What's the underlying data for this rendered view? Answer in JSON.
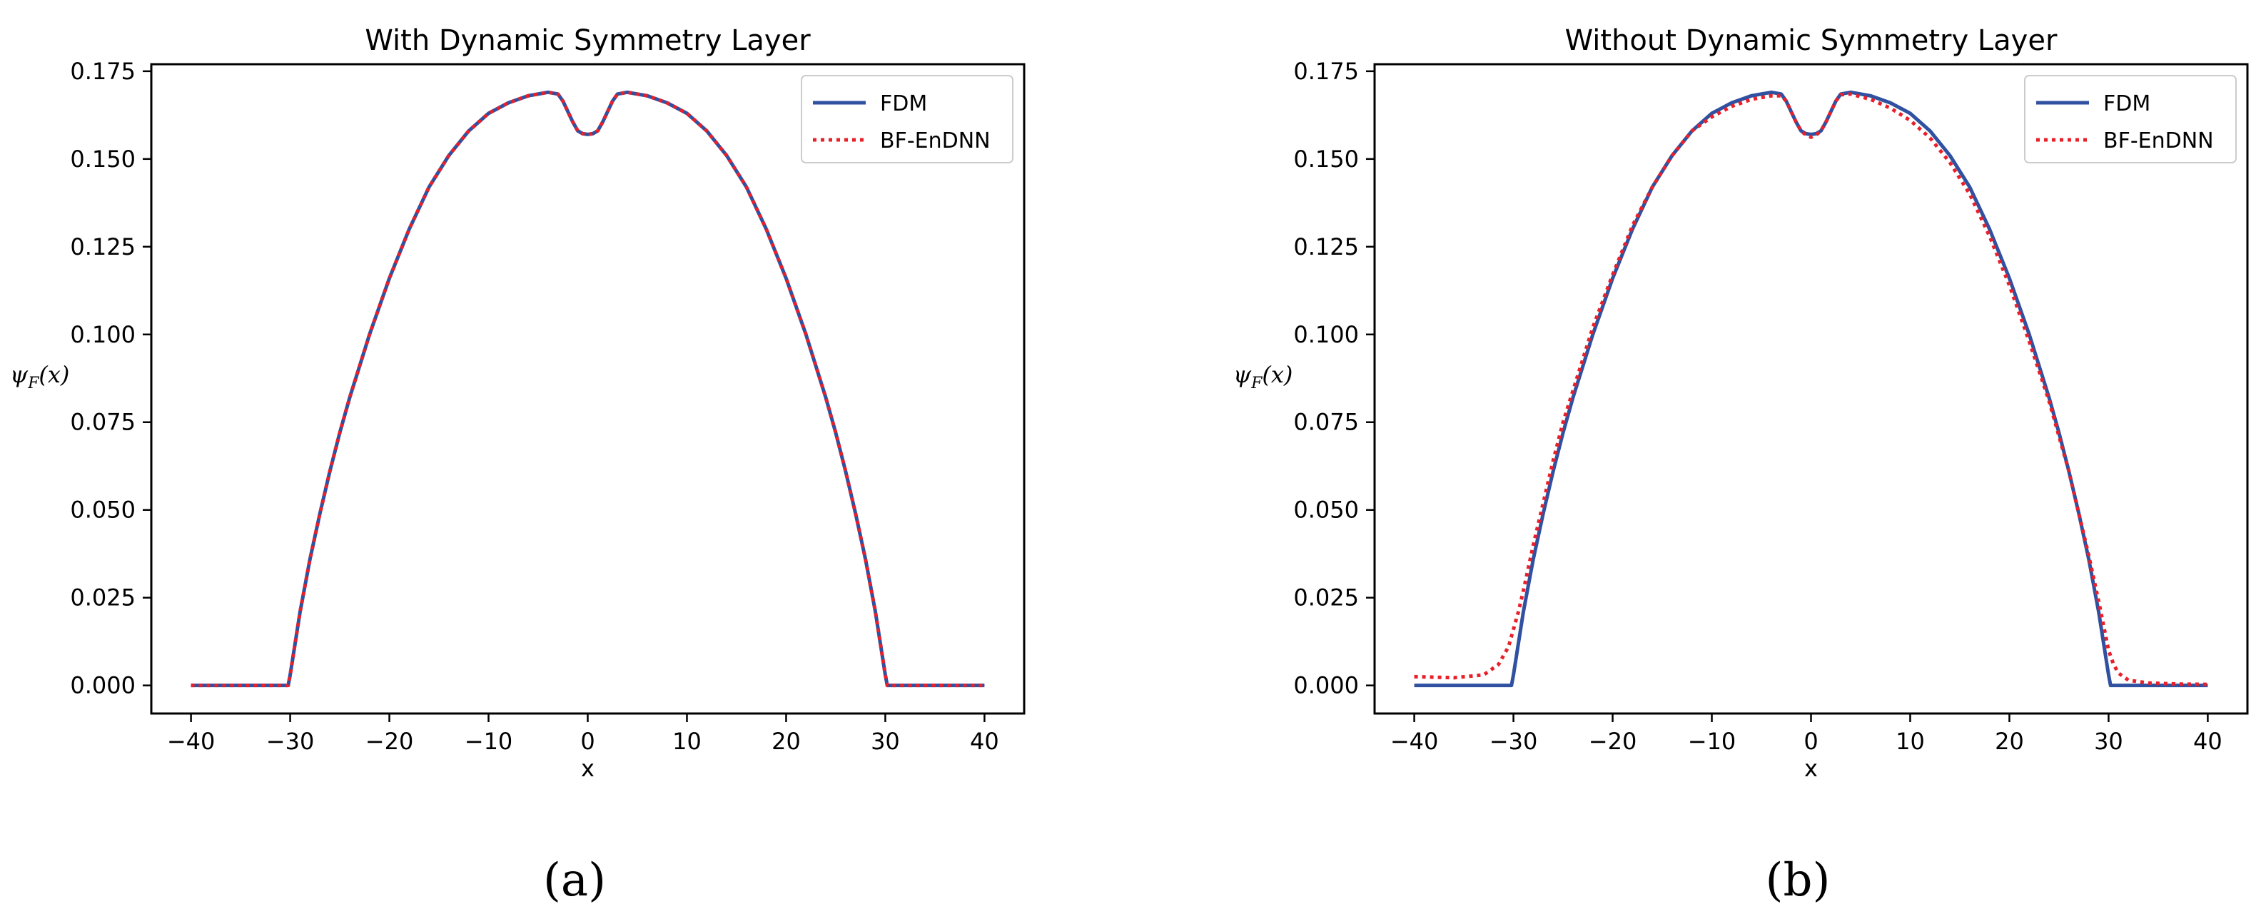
{
  "chart_data": [
    {
      "type": "line",
      "title": "With Dynamic Symmetry Layer",
      "caption": "(a)",
      "xlabel": "x",
      "ylabel": "ψ_F(x)",
      "xlim": [
        -44,
        44
      ],
      "ylim": [
        -0.008,
        0.177
      ],
      "xticks": [
        -40,
        -30,
        -20,
        -10,
        0,
        10,
        20,
        30,
        40
      ],
      "xtick_labels": [
        "−40",
        "−30",
        "−20",
        "−10",
        "0",
        "10",
        "20",
        "30",
        "40"
      ],
      "yticks": [
        0.0,
        0.025,
        0.05,
        0.075,
        0.1,
        0.125,
        0.15,
        0.175
      ],
      "ytick_labels": [
        "0.000",
        "0.025",
        "0.050",
        "0.075",
        "0.100",
        "0.125",
        "0.150",
        "0.175"
      ],
      "grid": false,
      "legend": "top-right",
      "series": [
        {
          "name": "FDM",
          "color": "#3050a0",
          "style": "solid",
          "x": [
            -40,
            -35,
            -30.2,
            -30,
            -29.5,
            -29,
            -28,
            -27,
            -26,
            -25,
            -24,
            -22,
            -20,
            -18,
            -16,
            -14,
            -12,
            -10,
            -8,
            -6,
            -4,
            -3,
            -2.5,
            -2,
            -1.5,
            -1,
            -0.5,
            0,
            0.5,
            1,
            1.5,
            2,
            2.5,
            3,
            4,
            6,
            8,
            10,
            12,
            14,
            16,
            18,
            20,
            22,
            24,
            25,
            26,
            27,
            28,
            29,
            29.5,
            30,
            30.2,
            35,
            40
          ],
          "y": [
            0.0,
            0.0,
            0.0,
            0.003,
            0.012,
            0.021,
            0.036,
            0.049,
            0.061,
            0.072,
            0.082,
            0.1,
            0.116,
            0.13,
            0.142,
            0.151,
            0.158,
            0.163,
            0.166,
            0.168,
            0.169,
            0.1685,
            0.1665,
            0.1635,
            0.1605,
            0.158,
            0.1572,
            0.157,
            0.1572,
            0.158,
            0.1605,
            0.1635,
            0.1665,
            0.1685,
            0.169,
            0.168,
            0.166,
            0.163,
            0.158,
            0.151,
            0.142,
            0.13,
            0.116,
            0.1,
            0.082,
            0.072,
            0.061,
            0.049,
            0.036,
            0.021,
            0.012,
            0.003,
            0.0,
            0.0,
            0.0
          ]
        },
        {
          "name": "BF-EnDNN",
          "color": "#e8202a",
          "style": "dotted",
          "x": [
            -40,
            -35,
            -30.2,
            -30,
            -29.5,
            -29,
            -28,
            -27,
            -26,
            -25,
            -24,
            -22,
            -20,
            -18,
            -16,
            -14,
            -12,
            -10,
            -8,
            -6,
            -4,
            -3,
            -2.5,
            -2,
            -1.5,
            -1,
            -0.5,
            0,
            0.5,
            1,
            1.5,
            2,
            2.5,
            3,
            4,
            6,
            8,
            10,
            12,
            14,
            16,
            18,
            20,
            22,
            24,
            25,
            26,
            27,
            28,
            29,
            29.5,
            30,
            30.2,
            35,
            40
          ],
          "y": [
            0.0,
            0.0,
            0.0,
            0.003,
            0.012,
            0.021,
            0.036,
            0.049,
            0.061,
            0.072,
            0.082,
            0.1,
            0.116,
            0.13,
            0.142,
            0.151,
            0.158,
            0.163,
            0.166,
            0.168,
            0.169,
            0.1685,
            0.1665,
            0.1635,
            0.1605,
            0.158,
            0.1572,
            0.157,
            0.1572,
            0.158,
            0.1605,
            0.1635,
            0.1665,
            0.1685,
            0.169,
            0.168,
            0.166,
            0.163,
            0.158,
            0.151,
            0.142,
            0.13,
            0.116,
            0.1,
            0.082,
            0.072,
            0.061,
            0.049,
            0.036,
            0.021,
            0.012,
            0.003,
            0.0,
            0.0,
            0.0
          ]
        }
      ]
    },
    {
      "type": "line",
      "title": "Without Dynamic Symmetry Layer",
      "caption": "(b)",
      "xlabel": "x",
      "ylabel": "ψ_F(x)",
      "xlim": [
        -44,
        44
      ],
      "ylim": [
        -0.008,
        0.177
      ],
      "xticks": [
        -40,
        -30,
        -20,
        -10,
        0,
        10,
        20,
        30,
        40
      ],
      "xtick_labels": [
        "−40",
        "−30",
        "−20",
        "−10",
        "0",
        "10",
        "20",
        "30",
        "40"
      ],
      "yticks": [
        0.0,
        0.025,
        0.05,
        0.075,
        0.1,
        0.125,
        0.15,
        0.175
      ],
      "ytick_labels": [
        "0.000",
        "0.025",
        "0.050",
        "0.075",
        "0.100",
        "0.125",
        "0.150",
        "0.175"
      ],
      "grid": false,
      "legend": "top-right",
      "series": [
        {
          "name": "FDM",
          "color": "#3050a0",
          "style": "solid",
          "x": [
            -40,
            -35,
            -30.2,
            -30,
            -29.5,
            -29,
            -28,
            -27,
            -26,
            -25,
            -24,
            -22,
            -20,
            -18,
            -16,
            -14,
            -12,
            -10,
            -8,
            -6,
            -4,
            -3,
            -2.5,
            -2,
            -1.5,
            -1,
            -0.5,
            0,
            0.5,
            1,
            1.5,
            2,
            2.5,
            3,
            4,
            6,
            8,
            10,
            12,
            14,
            16,
            18,
            20,
            22,
            24,
            25,
            26,
            27,
            28,
            29,
            29.5,
            30,
            30.2,
            35,
            40
          ],
          "y": [
            0.0,
            0.0,
            0.0,
            0.003,
            0.012,
            0.021,
            0.036,
            0.049,
            0.061,
            0.072,
            0.082,
            0.1,
            0.116,
            0.13,
            0.142,
            0.151,
            0.158,
            0.163,
            0.166,
            0.168,
            0.169,
            0.1685,
            0.1665,
            0.1635,
            0.1605,
            0.158,
            0.1572,
            0.157,
            0.1572,
            0.158,
            0.1605,
            0.1635,
            0.1665,
            0.1685,
            0.169,
            0.168,
            0.166,
            0.163,
            0.158,
            0.151,
            0.142,
            0.13,
            0.116,
            0.1,
            0.082,
            0.072,
            0.061,
            0.049,
            0.036,
            0.021,
            0.012,
            0.003,
            0.0,
            0.0,
            0.0
          ]
        },
        {
          "name": "BF-EnDNN",
          "color": "#e8202a",
          "style": "dotted",
          "x": [
            -40,
            -36,
            -33,
            -31.5,
            -30.5,
            -30,
            -29.5,
            -29,
            -28,
            -27,
            -26,
            -25,
            -24,
            -22,
            -20,
            -18,
            -16,
            -14,
            -12,
            -10,
            -8,
            -6,
            -4,
            -3,
            -2.5,
            -2,
            -1.5,
            -1,
            -0.5,
            0,
            0.5,
            1,
            1.5,
            2,
            2.5,
            3,
            4,
            6,
            8,
            10,
            12,
            14,
            16,
            18,
            20,
            22,
            24,
            25,
            26,
            27,
            28,
            29,
            29.5,
            30,
            30.5,
            31,
            32,
            34,
            37,
            40
          ],
          "y": [
            0.0025,
            0.0022,
            0.003,
            0.006,
            0.011,
            0.016,
            0.021,
            0.027,
            0.04,
            0.052,
            0.064,
            0.075,
            0.084,
            0.102,
            0.117,
            0.131,
            0.142,
            0.151,
            0.158,
            0.162,
            0.165,
            0.167,
            0.168,
            0.168,
            0.1665,
            0.1635,
            0.1605,
            0.158,
            0.1568,
            0.1562,
            0.1568,
            0.158,
            0.1605,
            0.1635,
            0.1665,
            0.1683,
            0.1685,
            0.167,
            0.1645,
            0.161,
            0.156,
            0.149,
            0.14,
            0.128,
            0.114,
            0.098,
            0.081,
            0.071,
            0.061,
            0.049,
            0.037,
            0.024,
            0.017,
            0.01,
            0.006,
            0.0035,
            0.0015,
            0.0007,
            0.0004,
            0.0003
          ]
        }
      ]
    }
  ]
}
